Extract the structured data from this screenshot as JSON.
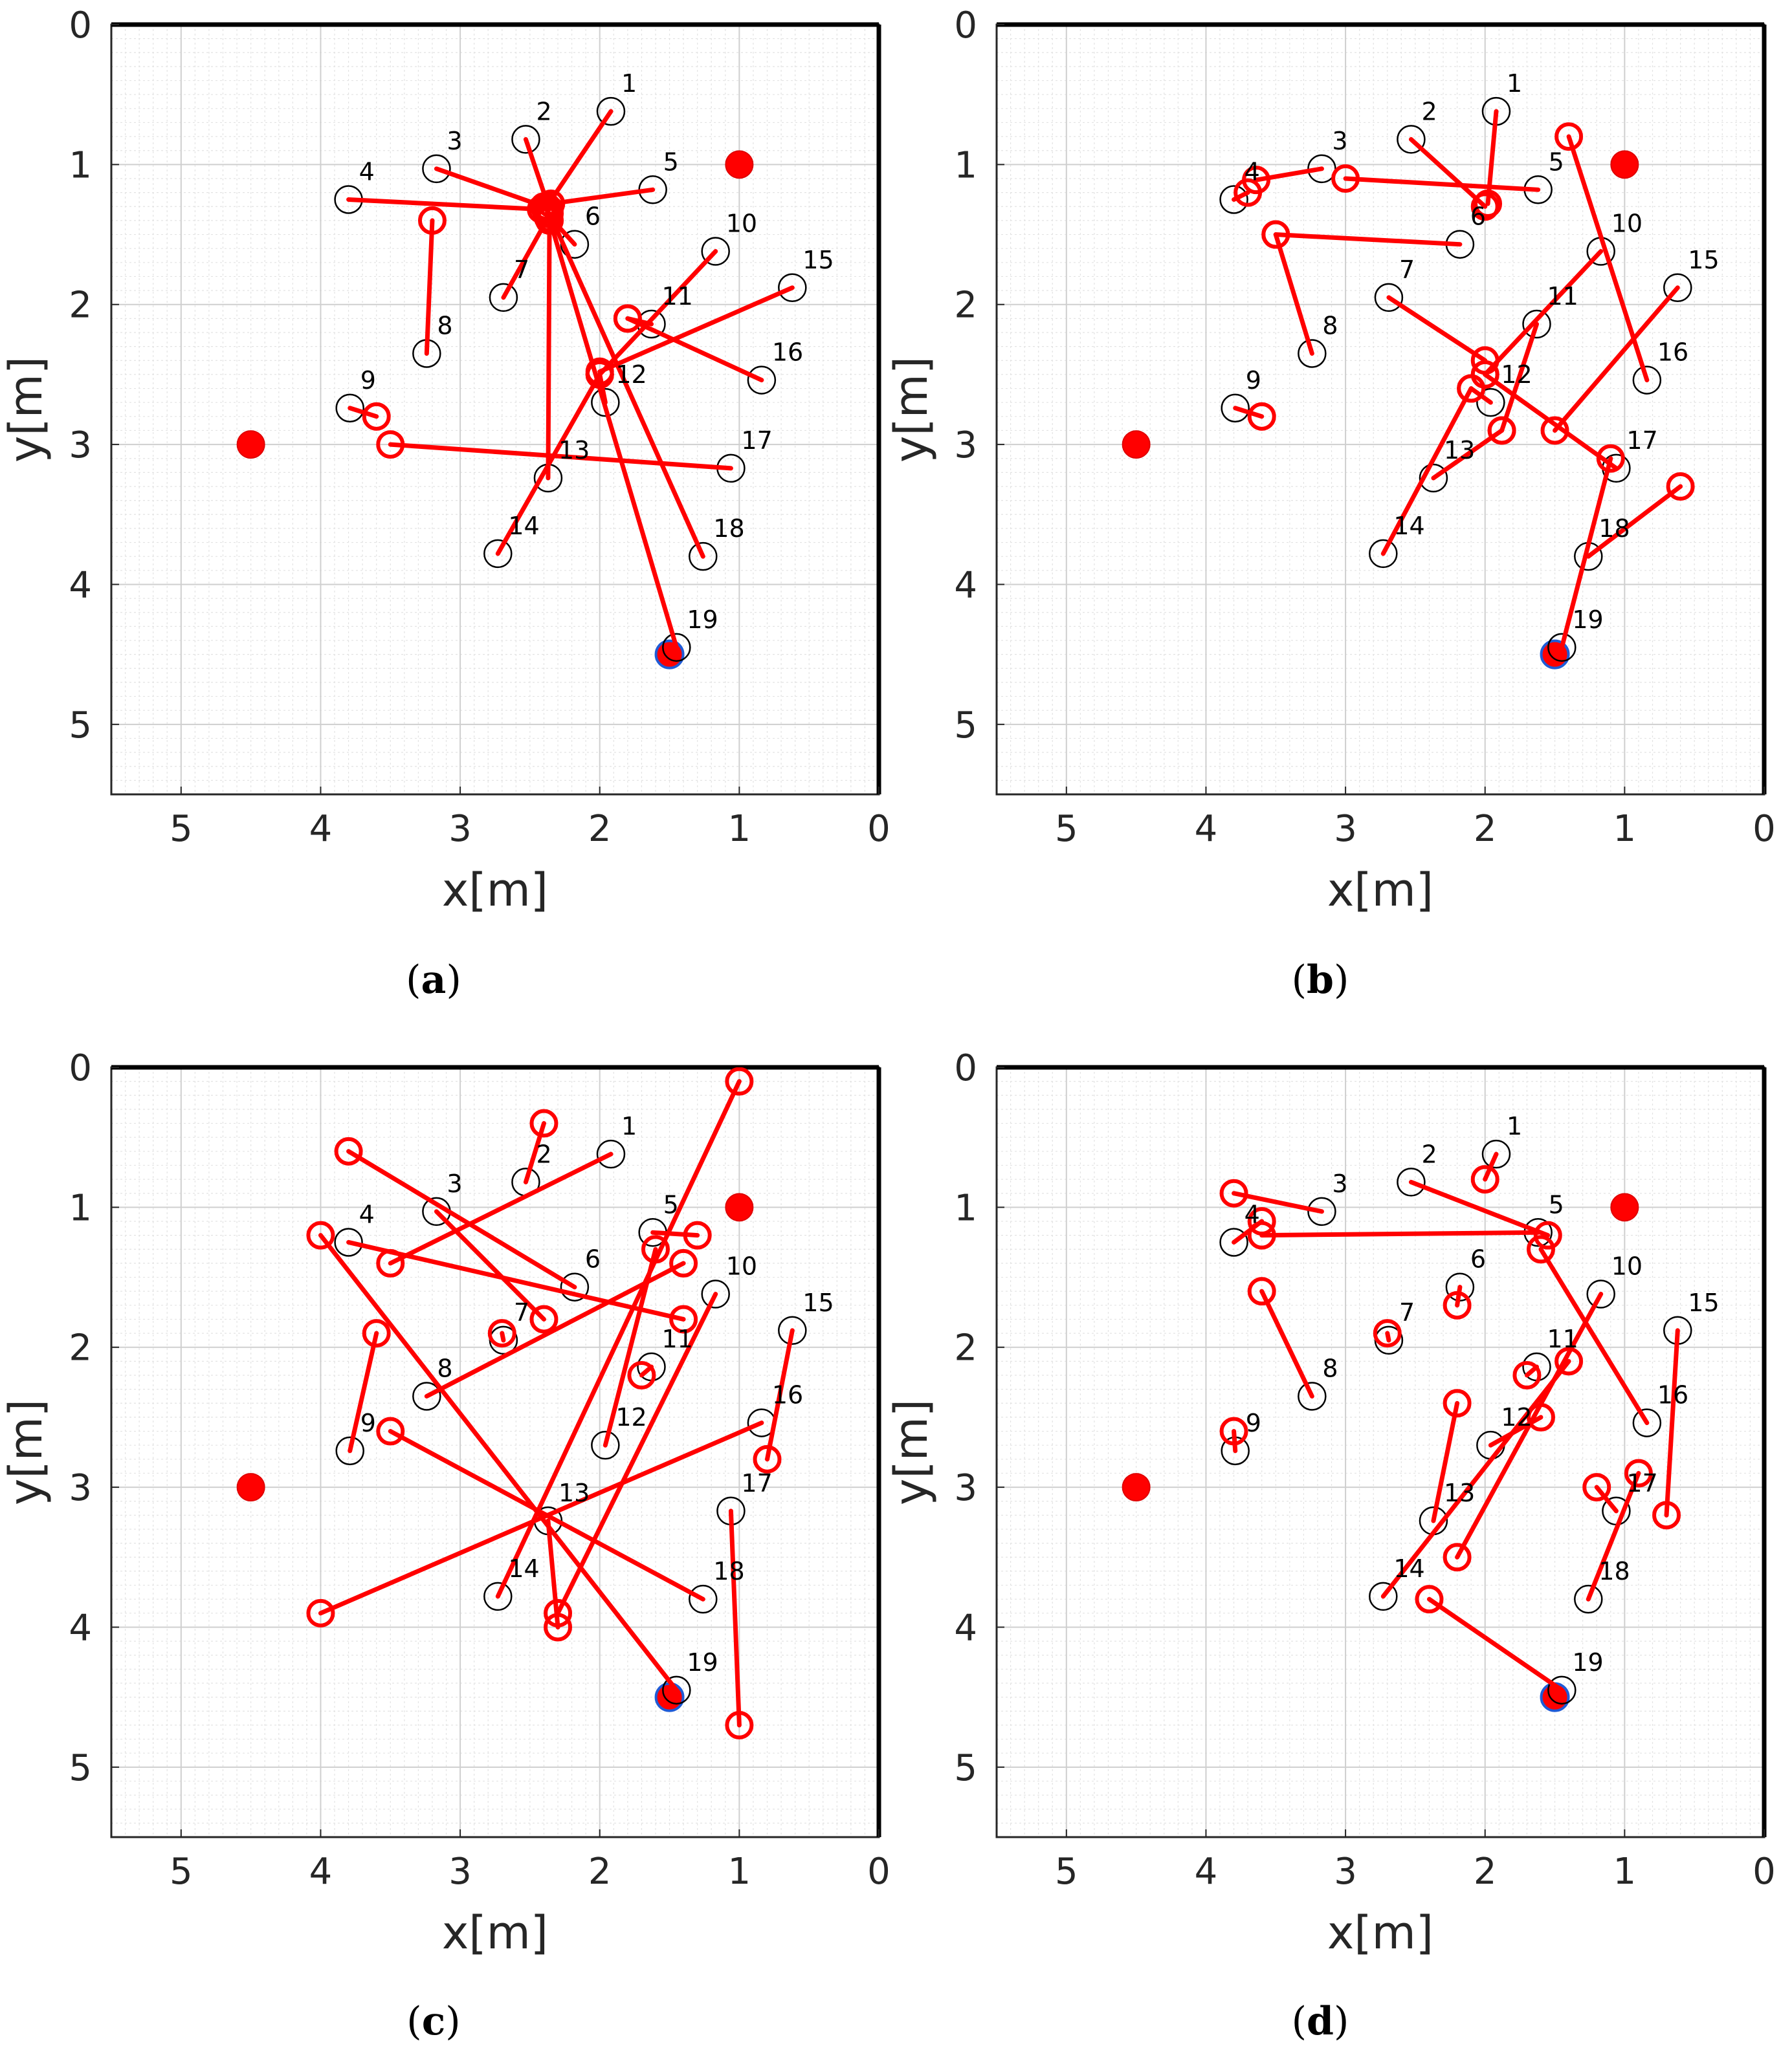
{
  "colors": {
    "estimate": "#ff0000",
    "truth": "#000000",
    "anchor": "#ff0000",
    "anchor_edge": "#e00000",
    "special_edge": "#1f5bd6",
    "grid_minor": "#e3e3e3",
    "grid_major": "#cfcfcf"
  },
  "chart_data": [
    {
      "type": "scatter",
      "panel": "(a)",
      "caption_letter": "a",
      "xlabel": "x[m]",
      "ylabel": "y[m]",
      "xlim": [
        5.5,
        0
      ],
      "ylim": [
        0,
        5.5
      ],
      "x_reversed": true,
      "y_reversed": true,
      "xticks": [
        5,
        4,
        3,
        2,
        1,
        0
      ],
      "yticks": [
        0,
        1,
        2,
        3,
        4,
        5
      ],
      "grid": true,
      "minor_grid": true,
      "anchors": [
        [
          1.0,
          1.0
        ],
        [
          4.5,
          3.0
        ],
        [
          1.5,
          4.5
        ]
      ],
      "nodes": [
        {
          "id": "1",
          "x": 1.92,
          "y": 0.62
        },
        {
          "id": "2",
          "x": 2.53,
          "y": 0.82
        },
        {
          "id": "3",
          "x": 3.17,
          "y": 1.03
        },
        {
          "id": "4",
          "x": 3.8,
          "y": 1.25
        },
        {
          "id": "5",
          "x": 1.62,
          "y": 1.18
        },
        {
          "id": "6",
          "x": 2.18,
          "y": 1.57
        },
        {
          "id": "7",
          "x": 2.69,
          "y": 1.95
        },
        {
          "id": "8",
          "x": 3.24,
          "y": 2.35
        },
        {
          "id": "9",
          "x": 3.79,
          "y": 2.74
        },
        {
          "id": "10",
          "x": 1.17,
          "y": 1.62
        },
        {
          "id": "11",
          "x": 1.63,
          "y": 2.14
        },
        {
          "id": "12",
          "x": 1.96,
          "y": 2.7
        },
        {
          "id": "13",
          "x": 2.37,
          "y": 3.24
        },
        {
          "id": "14",
          "x": 2.73,
          "y": 3.78
        },
        {
          "id": "15",
          "x": 0.62,
          "y": 1.88
        },
        {
          "id": "16",
          "x": 0.84,
          "y": 2.54
        },
        {
          "id": "17",
          "x": 1.06,
          "y": 3.17
        },
        {
          "id": "18",
          "x": 1.26,
          "y": 3.8
        },
        {
          "id": "19",
          "x": 1.45,
          "y": 4.45
        }
      ],
      "estimates": [
        {
          "id": "1",
          "x": 2.38,
          "y": 1.3
        },
        {
          "id": "2",
          "x": 2.36,
          "y": 1.32
        },
        {
          "id": "3",
          "x": 2.4,
          "y": 1.3
        },
        {
          "id": "4",
          "x": 2.42,
          "y": 1.32
        },
        {
          "id": "5",
          "x": 2.35,
          "y": 1.28
        },
        {
          "id": "6",
          "x": 2.38,
          "y": 1.35
        },
        {
          "id": "7",
          "x": 2.37,
          "y": 1.38
        },
        {
          "id": "8",
          "x": 3.2,
          "y": 1.4
        },
        {
          "id": "9",
          "x": 3.6,
          "y": 2.8
        },
        {
          "id": "10",
          "x": 2.0,
          "y": 2.5
        },
        {
          "id": "11",
          "x": 1.8,
          "y": 2.1
        },
        {
          "id": "12",
          "x": 2.0,
          "y": 2.5
        },
        {
          "id": "13",
          "x": 2.36,
          "y": 1.4
        },
        {
          "id": "14",
          "x": 2.0,
          "y": 2.5
        },
        {
          "id": "15",
          "x": 2.0,
          "y": 2.48
        },
        {
          "id": "16",
          "x": 1.8,
          "y": 2.1
        },
        {
          "id": "17",
          "x": 3.5,
          "y": 3.0
        },
        {
          "id": "18",
          "x": 2.36,
          "y": 1.35
        },
        {
          "id": "19",
          "x": 2.38,
          "y": 1.32
        }
      ]
    },
    {
      "type": "scatter",
      "panel": "(b)",
      "caption_letter": "b",
      "xlabel": "x[m]",
      "ylabel": "y[m]",
      "xlim": [
        5.5,
        0
      ],
      "ylim": [
        0,
        5.5
      ],
      "x_reversed": true,
      "y_reversed": true,
      "xticks": [
        5,
        4,
        3,
        2,
        1,
        0
      ],
      "yticks": [
        0,
        1,
        2,
        3,
        4,
        5
      ],
      "grid": true,
      "minor_grid": true,
      "anchors": [
        [
          1.0,
          1.0
        ],
        [
          4.5,
          3.0
        ],
        [
          1.5,
          4.5
        ]
      ],
      "nodes": [
        {
          "id": "1",
          "x": 1.92,
          "y": 0.62
        },
        {
          "id": "2",
          "x": 2.53,
          "y": 0.82
        },
        {
          "id": "3",
          "x": 3.17,
          "y": 1.03
        },
        {
          "id": "4",
          "x": 3.8,
          "y": 1.25
        },
        {
          "id": "5",
          "x": 1.62,
          "y": 1.18
        },
        {
          "id": "6",
          "x": 2.18,
          "y": 1.57
        },
        {
          "id": "7",
          "x": 2.69,
          "y": 1.95
        },
        {
          "id": "8",
          "x": 3.24,
          "y": 2.35
        },
        {
          "id": "9",
          "x": 3.79,
          "y": 2.74
        },
        {
          "id": "10",
          "x": 1.17,
          "y": 1.62
        },
        {
          "id": "11",
          "x": 1.63,
          "y": 2.14
        },
        {
          "id": "12",
          "x": 1.96,
          "y": 2.7
        },
        {
          "id": "13",
          "x": 2.37,
          "y": 3.24
        },
        {
          "id": "14",
          "x": 2.73,
          "y": 3.78
        },
        {
          "id": "15",
          "x": 0.62,
          "y": 1.88
        },
        {
          "id": "16",
          "x": 0.84,
          "y": 2.54
        },
        {
          "id": "17",
          "x": 1.06,
          "y": 3.17
        },
        {
          "id": "18",
          "x": 1.26,
          "y": 3.8
        },
        {
          "id": "19",
          "x": 1.45,
          "y": 4.45
        }
      ],
      "estimates": [
        {
          "id": "1",
          "x": 1.98,
          "y": 1.28
        },
        {
          "id": "2",
          "x": 2.0,
          "y": 1.3
        },
        {
          "id": "3",
          "x": 3.64,
          "y": 1.11
        },
        {
          "id": "4",
          "x": 3.7,
          "y": 1.2
        },
        {
          "id": "5",
          "x": 3.0,
          "y": 1.1
        },
        {
          "id": "6",
          "x": 3.5,
          "y": 1.5
        },
        {
          "id": "7",
          "x": 2.0,
          "y": 2.4
        },
        {
          "id": "8",
          "x": 3.5,
          "y": 1.5
        },
        {
          "id": "9",
          "x": 3.6,
          "y": 2.8
        },
        {
          "id": "10",
          "x": 2.0,
          "y": 2.5
        },
        {
          "id": "11",
          "x": 1.88,
          "y": 2.9
        },
        {
          "id": "12",
          "x": 2.1,
          "y": 2.6
        },
        {
          "id": "13",
          "x": 1.88,
          "y": 2.9
        },
        {
          "id": "14",
          "x": 2.1,
          "y": 2.6
        },
        {
          "id": "15",
          "x": 1.5,
          "y": 2.9
        },
        {
          "id": "16",
          "x": 1.4,
          "y": 0.8
        },
        {
          "id": "17",
          "x": 2.0,
          "y": 2.5
        },
        {
          "id": "18",
          "x": 0.6,
          "y": 3.3
        },
        {
          "id": "19",
          "x": 1.1,
          "y": 3.1
        }
      ]
    },
    {
      "type": "scatter",
      "panel": "(c)",
      "caption_letter": "c",
      "xlabel": "x[m]",
      "ylabel": "y[m]",
      "xlim": [
        5.5,
        0
      ],
      "ylim": [
        0,
        5.5
      ],
      "x_reversed": true,
      "y_reversed": true,
      "xticks": [
        5,
        4,
        3,
        2,
        1,
        0
      ],
      "yticks": [
        0,
        1,
        2,
        3,
        4,
        5
      ],
      "grid": true,
      "minor_grid": true,
      "anchors": [
        [
          1.0,
          1.0
        ],
        [
          4.5,
          3.0
        ],
        [
          1.5,
          4.5
        ]
      ],
      "nodes": [
        {
          "id": "1",
          "x": 1.92,
          "y": 0.62
        },
        {
          "id": "2",
          "x": 2.53,
          "y": 0.82
        },
        {
          "id": "3",
          "x": 3.17,
          "y": 1.03
        },
        {
          "id": "4",
          "x": 3.8,
          "y": 1.25
        },
        {
          "id": "5",
          "x": 1.62,
          "y": 1.18
        },
        {
          "id": "6",
          "x": 2.18,
          "y": 1.57
        },
        {
          "id": "7",
          "x": 2.69,
          "y": 1.95
        },
        {
          "id": "8",
          "x": 3.24,
          "y": 2.35
        },
        {
          "id": "9",
          "x": 3.79,
          "y": 2.74
        },
        {
          "id": "10",
          "x": 1.17,
          "y": 1.62
        },
        {
          "id": "11",
          "x": 1.63,
          "y": 2.14
        },
        {
          "id": "12",
          "x": 1.96,
          "y": 2.7
        },
        {
          "id": "13",
          "x": 2.37,
          "y": 3.24
        },
        {
          "id": "14",
          "x": 2.73,
          "y": 3.78
        },
        {
          "id": "15",
          "x": 0.62,
          "y": 1.88
        },
        {
          "id": "16",
          "x": 0.84,
          "y": 2.54
        },
        {
          "id": "17",
          "x": 1.06,
          "y": 3.17
        },
        {
          "id": "18",
          "x": 1.26,
          "y": 3.8
        },
        {
          "id": "19",
          "x": 1.45,
          "y": 4.45
        }
      ],
      "estimates": [
        {
          "id": "1",
          "x": 3.5,
          "y": 1.4
        },
        {
          "id": "2",
          "x": 2.4,
          "y": 0.4
        },
        {
          "id": "3",
          "x": 2.4,
          "y": 1.8
        },
        {
          "id": "4",
          "x": 1.4,
          "y": 1.8
        },
        {
          "id": "5",
          "x": 1.3,
          "y": 1.2
        },
        {
          "id": "6",
          "x": 3.8,
          "y": 0.6
        },
        {
          "id": "7",
          "x": 2.7,
          "y": 1.9
        },
        {
          "id": "8",
          "x": 1.4,
          "y": 1.4
        },
        {
          "id": "9",
          "x": 3.6,
          "y": 1.9
        },
        {
          "id": "10",
          "x": 2.3,
          "y": 3.9
        },
        {
          "id": "11",
          "x": 1.7,
          "y": 2.2
        },
        {
          "id": "12",
          "x": 1.6,
          "y": 1.3
        },
        {
          "id": "13",
          "x": 2.3,
          "y": 4.0
        },
        {
          "id": "14",
          "x": 1.0,
          "y": 0.1
        },
        {
          "id": "15",
          "x": 0.8,
          "y": 2.8
        },
        {
          "id": "16",
          "x": 4.0,
          "y": 3.9
        },
        {
          "id": "17",
          "x": 1.0,
          "y": 4.7
        },
        {
          "id": "18",
          "x": 3.5,
          "y": 2.6
        },
        {
          "id": "19",
          "x": 4.0,
          "y": 1.2
        }
      ]
    },
    {
      "type": "scatter",
      "panel": "(d)",
      "caption_letter": "d",
      "xlabel": "x[m]",
      "ylabel": "y[m]",
      "xlim": [
        5.5,
        0
      ],
      "ylim": [
        0,
        5.5
      ],
      "x_reversed": true,
      "y_reversed": true,
      "xticks": [
        5,
        4,
        3,
        2,
        1,
        0
      ],
      "yticks": [
        0,
        1,
        2,
        3,
        4,
        5
      ],
      "grid": true,
      "minor_grid": true,
      "anchors": [
        [
          1.0,
          1.0
        ],
        [
          4.5,
          3.0
        ],
        [
          1.5,
          4.5
        ]
      ],
      "nodes": [
        {
          "id": "1",
          "x": 1.92,
          "y": 0.62
        },
        {
          "id": "2",
          "x": 2.53,
          "y": 0.82
        },
        {
          "id": "3",
          "x": 3.17,
          "y": 1.03
        },
        {
          "id": "4",
          "x": 3.8,
          "y": 1.25
        },
        {
          "id": "5",
          "x": 1.62,
          "y": 1.18
        },
        {
          "id": "6",
          "x": 2.18,
          "y": 1.57
        },
        {
          "id": "7",
          "x": 2.69,
          "y": 1.95
        },
        {
          "id": "8",
          "x": 3.24,
          "y": 2.35
        },
        {
          "id": "9",
          "x": 3.79,
          "y": 2.74
        },
        {
          "id": "10",
          "x": 1.17,
          "y": 1.62
        },
        {
          "id": "11",
          "x": 1.63,
          "y": 2.14
        },
        {
          "id": "12",
          "x": 1.96,
          "y": 2.7
        },
        {
          "id": "13",
          "x": 2.37,
          "y": 3.24
        },
        {
          "id": "14",
          "x": 2.73,
          "y": 3.78
        },
        {
          "id": "15",
          "x": 0.62,
          "y": 1.88
        },
        {
          "id": "16",
          "x": 0.84,
          "y": 2.54
        },
        {
          "id": "17",
          "x": 1.06,
          "y": 3.17
        },
        {
          "id": "18",
          "x": 1.26,
          "y": 3.8
        },
        {
          "id": "19",
          "x": 1.45,
          "y": 4.45
        }
      ],
      "estimates": [
        {
          "id": "1",
          "x": 2.0,
          "y": 0.8
        },
        {
          "id": "2",
          "x": 1.55,
          "y": 1.2
        },
        {
          "id": "3",
          "x": 3.8,
          "y": 0.9
        },
        {
          "id": "4",
          "x": 3.6,
          "y": 1.1
        },
        {
          "id": "5",
          "x": 3.6,
          "y": 1.2
        },
        {
          "id": "6",
          "x": 2.2,
          "y": 1.7
        },
        {
          "id": "7",
          "x": 2.7,
          "y": 1.9
        },
        {
          "id": "8",
          "x": 3.6,
          "y": 1.6
        },
        {
          "id": "9",
          "x": 3.8,
          "y": 2.6
        },
        {
          "id": "10",
          "x": 2.2,
          "y": 3.5
        },
        {
          "id": "11",
          "x": 1.7,
          "y": 2.2
        },
        {
          "id": "12",
          "x": 1.6,
          "y": 2.5
        },
        {
          "id": "13",
          "x": 2.2,
          "y": 2.4
        },
        {
          "id": "14",
          "x": 1.4,
          "y": 2.1
        },
        {
          "id": "15",
          "x": 0.7,
          "y": 3.2
        },
        {
          "id": "16",
          "x": 1.6,
          "y": 1.3
        },
        {
          "id": "17",
          "x": 1.2,
          "y": 3.0
        },
        {
          "id": "18",
          "x": 0.9,
          "y": 2.9
        },
        {
          "id": "19",
          "x": 2.4,
          "y": 3.8
        }
      ]
    }
  ]
}
